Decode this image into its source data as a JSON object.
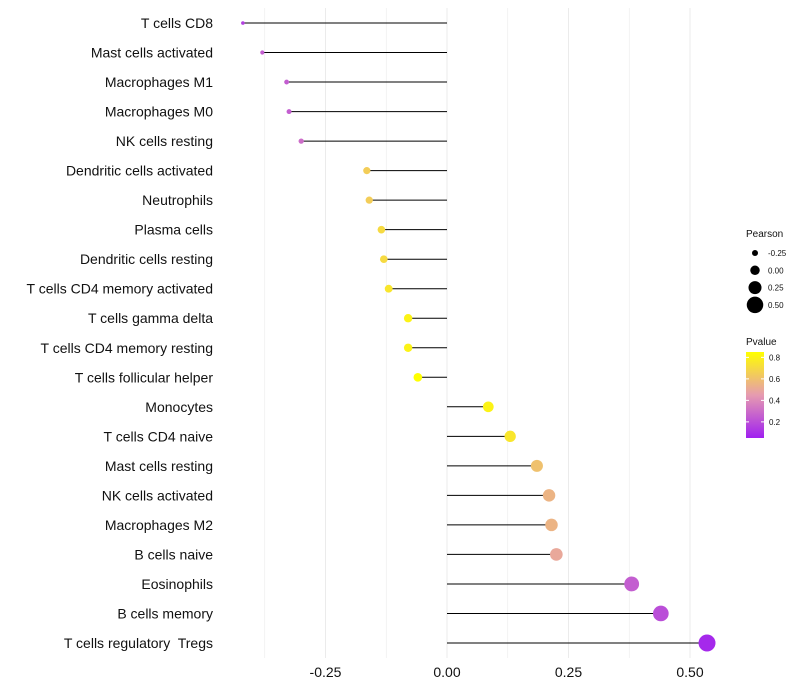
{
  "chart_data": {
    "type": "lollipop",
    "categories": [
      "T cells CD8",
      "Mast cells activated",
      "Macrophages M1",
      "Macrophages M0",
      "NK cells resting",
      "Dendritic cells activated",
      "Neutrophils",
      "Plasma cells",
      "Dendritic cells resting",
      "T cells CD4 memory activated",
      "T cells gamma delta",
      "T cells CD4 memory resting",
      "T cells follicular helper",
      "Monocytes",
      "T cells CD4 naive",
      "Mast cells resting",
      "NK cells activated",
      "Macrophages M2",
      "B cells naive",
      "Eosinophils",
      "B cells memory",
      "T cells regulatory  Tregs"
    ],
    "values": [
      -0.42,
      -0.38,
      -0.33,
      -0.325,
      -0.3,
      -0.165,
      -0.16,
      -0.135,
      -0.13,
      -0.12,
      -0.08,
      -0.08,
      -0.06,
      0.085,
      0.13,
      0.185,
      0.21,
      0.215,
      0.225,
      0.38,
      0.44,
      0.535
    ],
    "pvalues": [
      0.15,
      0.25,
      0.25,
      0.25,
      0.3,
      0.65,
      0.65,
      0.7,
      0.7,
      0.75,
      0.8,
      0.8,
      0.85,
      0.8,
      0.75,
      0.6,
      0.55,
      0.55,
      0.5,
      0.25,
      0.2,
      0.08
    ],
    "xlim": [
      -0.45,
      0.55
    ],
    "xticks": [
      -0.25,
      0.0,
      0.25,
      0.5
    ],
    "xtick_labels": [
      "-0.25",
      "0.00",
      "0.25",
      "0.50"
    ],
    "xlabel": "",
    "ylabel": "",
    "grid": "vertical",
    "legend_size": {
      "title": "Pearson",
      "values": [
        -0.25,
        0.0,
        0.25,
        0.5
      ],
      "labels": [
        "-0.25",
        "0.00",
        "0.25",
        "0.50"
      ]
    },
    "legend_color": {
      "title": "Pvalue",
      "range": [
        0.05,
        0.85
      ],
      "ticks": [
        0.8,
        0.6,
        0.4,
        0.2
      ],
      "tick_labels": [
        "0.8",
        "0.6",
        "0.4",
        "0.2"
      ],
      "low_color": "#a020f0",
      "high_color": "#ffff00"
    }
  },
  "colors": {
    "segment": "#000000",
    "grid": "#ebebeb",
    "gradient_low": "#a020f0",
    "gradient_mid": "#e69bb0",
    "gradient_high": "#ffff00"
  }
}
